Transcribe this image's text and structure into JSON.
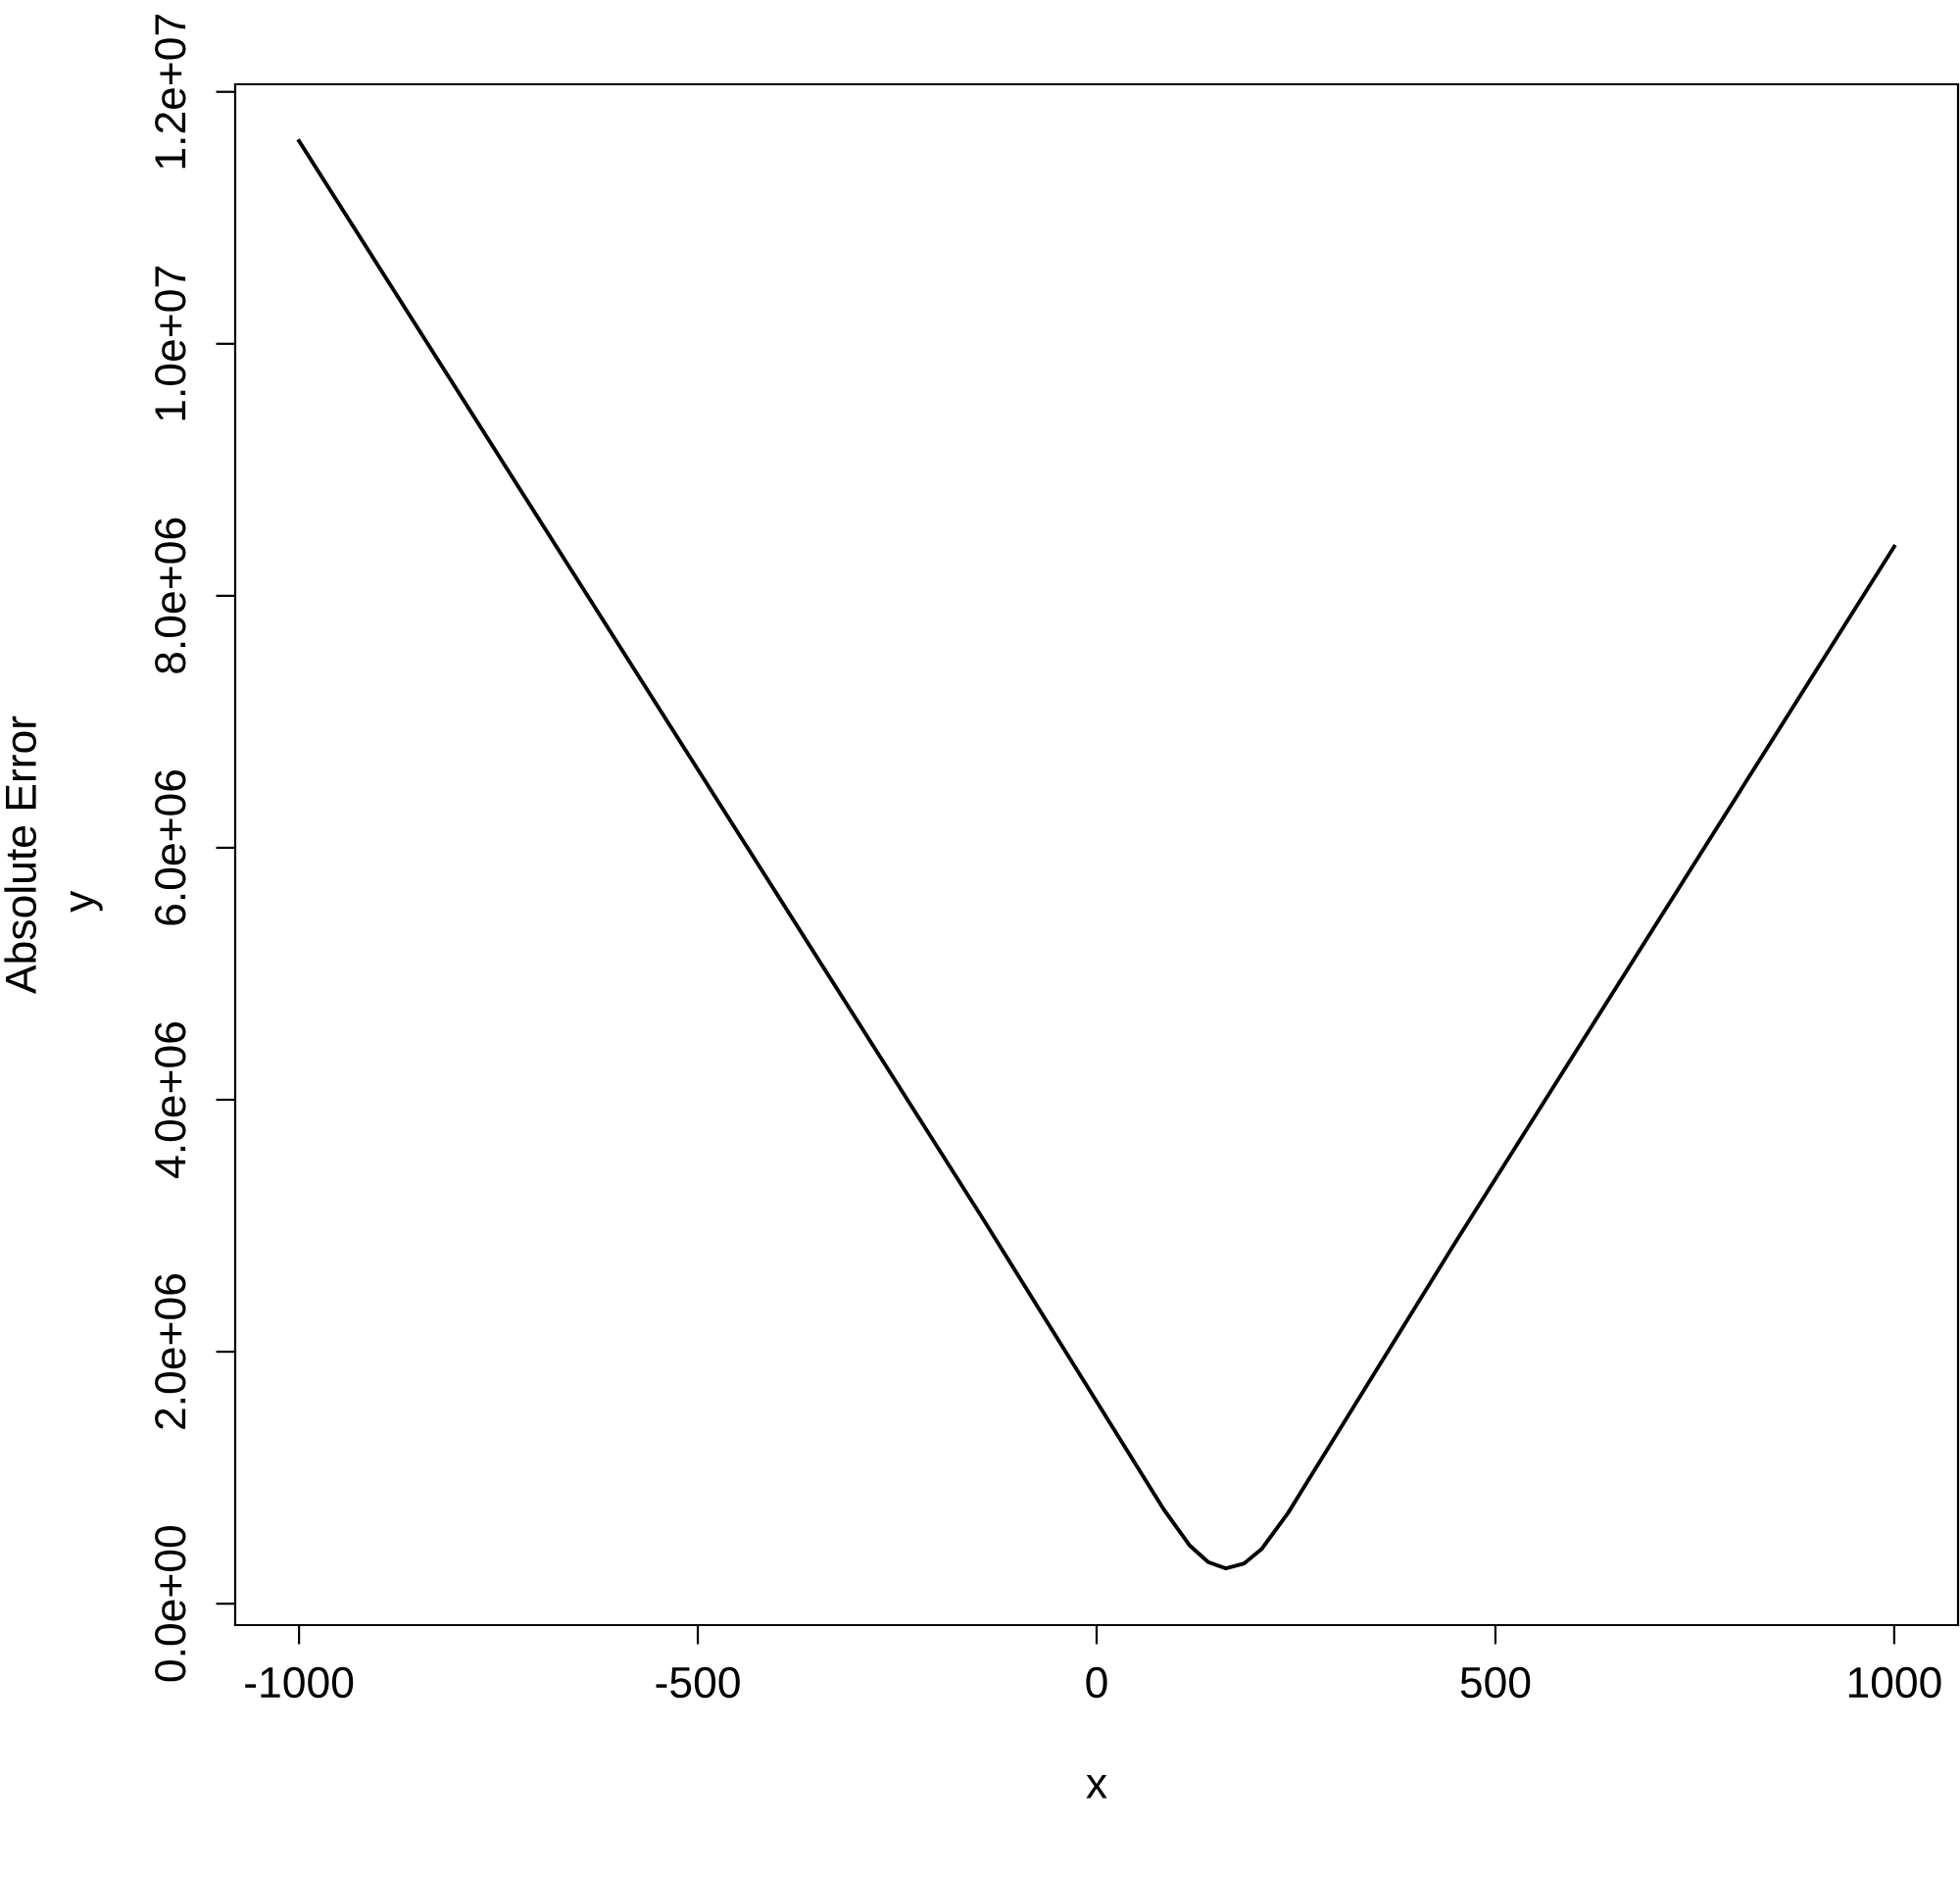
{
  "chart_data": {
    "type": "line",
    "xlabel": "x",
    "ylabel": "Absolute Error",
    "annotations": [
      "y"
    ],
    "x": [
      -1000,
      -145,
      84,
      117,
      140,
      162,
      185,
      207,
      240,
      445,
      1000
    ],
    "values": [
      11610000,
      3080000,
      750000,
      460000,
      330000,
      280000,
      320000,
      435000,
      720000,
      2820000,
      8390000
    ],
    "color": "#000000",
    "marker": "none",
    "line_style": "solid",
    "grid": false,
    "legend": false,
    "xlim": [
      -1080,
      1080
    ],
    "ylim": [
      -170000,
      12060000
    ],
    "xticks": [
      -1000,
      -500,
      0,
      500,
      1000
    ],
    "yticks": [
      {
        "value": 0,
        "label": "0.0e+00"
      },
      {
        "value": 2000000,
        "label": "2.0e+06"
      },
      {
        "value": 4000000,
        "label": "4.0e+06"
      },
      {
        "value": 6000000,
        "label": "6.0e+06"
      },
      {
        "value": 8000000,
        "label": "8.0e+06"
      },
      {
        "value": 10000000,
        "label": "1.0e+07"
      },
      {
        "value": 12000000,
        "label": "1.2e+07"
      }
    ]
  }
}
